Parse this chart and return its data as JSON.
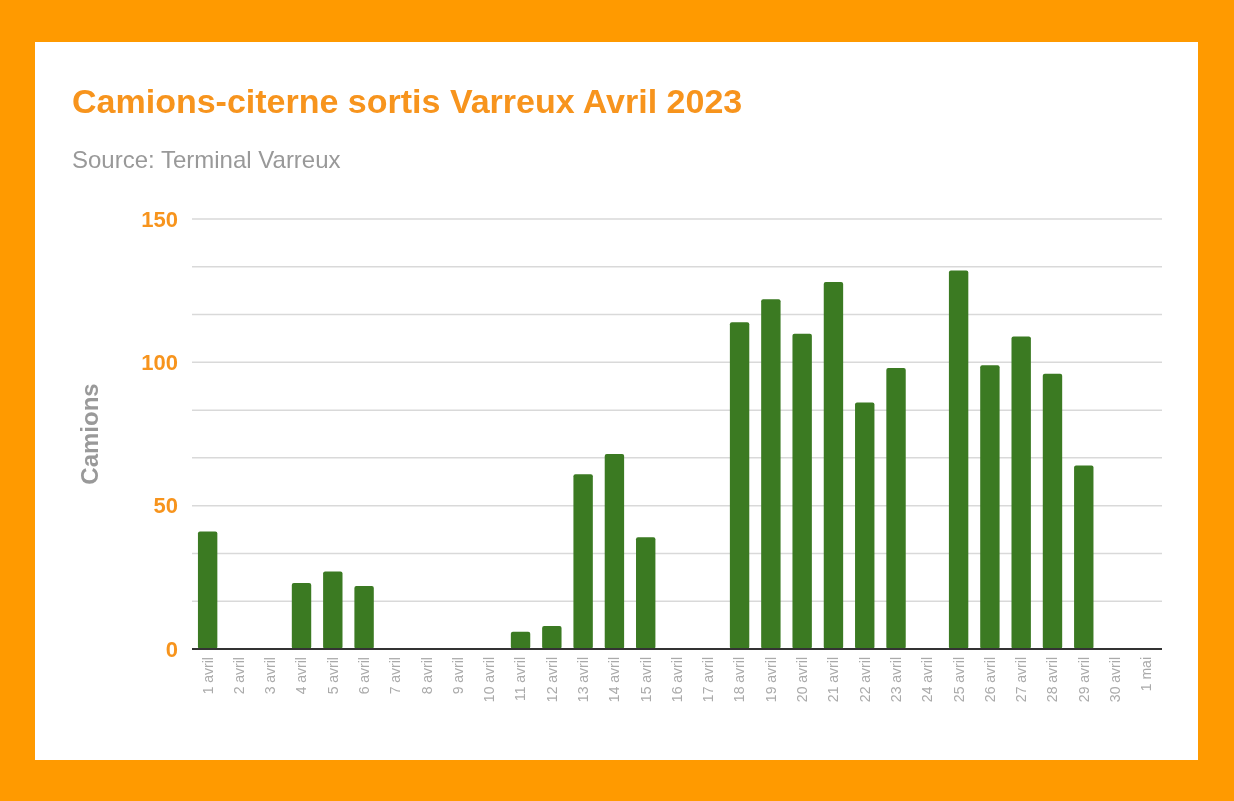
{
  "chart_data": {
    "type": "bar",
    "title": "Camions-citerne sortis Varreux Avril 2023",
    "subtitle": "Source: Terminal Varreux",
    "ylabel": "Camions",
    "categories": [
      "1 avril",
      "2 avril",
      "3 avril",
      "4 avril",
      "5 avril",
      "6 avril",
      "7 avril",
      "8 avril",
      "9 avril",
      "10 avril",
      "11 avril",
      "12 avril",
      "13 avril",
      "14 avril",
      "15 avril",
      "16 avril",
      "17 avril",
      "18 avril",
      "19 avril",
      "20 avril",
      "21 avril",
      "22 avril",
      "23 avril",
      "24 avril",
      "25 avril",
      "26 avril",
      "27 avril",
      "28 avril",
      "29 avril",
      "30 avril",
      "1 mai"
    ],
    "values": [
      41,
      0,
      0,
      23,
      27,
      22,
      0,
      0,
      0,
      0,
      6,
      8,
      61,
      68,
      39,
      0,
      0,
      114,
      122,
      110,
      128,
      86,
      98,
      0,
      132,
      99,
      109,
      96,
      64,
      0,
      0
    ],
    "color": "#3b7a22",
    "ylim": [
      0,
      150
    ],
    "yticks": [
      0,
      {
        "value": 16.7,
        "label": null
      },
      {
        "value": 33.3,
        "label": null
      },
      50,
      {
        "value": 66.7,
        "label": null
      },
      {
        "value": 83.3,
        "label": null
      },
      100,
      {
        "value": 116.7,
        "label": null
      },
      {
        "value": 133.3,
        "label": null
      },
      150
    ],
    "grid": "y"
  }
}
